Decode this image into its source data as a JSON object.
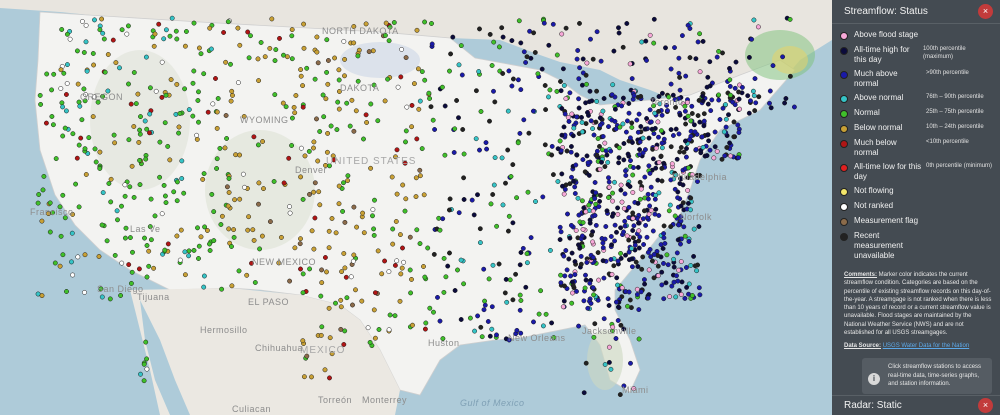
{
  "map": {
    "labels": {
      "usa": "UNITED STATES",
      "mexico": "MEXICO",
      "oregon": "OREGON",
      "wyoming": "WYOMING",
      "north_dakota": "NORTH DAKOTA",
      "south_dakota": "DAKOTA",
      "new_mexico": "NEW MEXICO",
      "san_francisco": "Francisco",
      "las_vegas": "Las Ve",
      "san_diego": "San Diego",
      "tijuana": "Tijuana",
      "el_paso": "EL PASO",
      "hermosillo": "Hermosillo",
      "chihuahua": "Chihuahua",
      "torreon": "Torreón",
      "culiacan": "Culiacan",
      "monterrey": "Monterrey",
      "houston": "Huston",
      "new_orleans": "New Orleans",
      "jacksonville": "Jacksonville",
      "miami": "Miami",
      "gulf": "Gulf of Mexico",
      "denver": "Denver",
      "philadelphia": "Philadelphia",
      "norfolk": "Norfolk",
      "toronto": "Toronto"
    }
  },
  "panel": {
    "title": "Streamflow: Status",
    "close_icon": "×",
    "legend": [
      {
        "label": "Above flood stage",
        "range": "",
        "color": "#f7a8d8"
      },
      {
        "label": "All-time high for this day",
        "range": "100th percentile (maximum)",
        "color": "#0b0b3b"
      },
      {
        "label": "Much above normal",
        "range": ">90th percentile",
        "color": "#1a1aa8"
      },
      {
        "label": "Above normal",
        "range": "76th – 90th percentile",
        "color": "#35c3c6"
      },
      {
        "label": "Normal",
        "range": "25th – 75th percentile",
        "color": "#3fbf2a"
      },
      {
        "label": "Below normal",
        "range": "10th – 24th percentile",
        "color": "#c8a035"
      },
      {
        "label": "Much below normal",
        "range": "<10th percentile",
        "color": "#b01515"
      },
      {
        "label": "All-time low for this day",
        "range": "0th percentile (minimum)",
        "color": "#e02020"
      },
      {
        "label": "Not flowing",
        "range": "",
        "color": "#f2e66a"
      },
      {
        "label": "Not ranked",
        "range": "",
        "color": "#ffffff"
      },
      {
        "label": "Measurement flag",
        "range": "",
        "color": "#8b6b4a"
      },
      {
        "label": "Recent measurement unavailable",
        "range": "",
        "color": "#222222"
      }
    ],
    "comments_label": "Comments:",
    "comments_text": " Marker color indicates the current streamflow condition. Categories are based on the percentile of existing streamflow records on this day-of-the-year. A streamgage is not ranked when there is less than 10 years of record or a current streamflow value is unavailable. Flood stages are maintained by the National Weather Service (NWS) and are not established for all USGS streamgages.",
    "source_label": "Data Source:",
    "source_link": "USGS Water Data for the Nation",
    "info_icon": "i",
    "info_text": "Click streamflow stations to access real-time data, time-series graphs, and station information.",
    "radar_title": "Radar: Static",
    "radar_close_icon": "×"
  }
}
